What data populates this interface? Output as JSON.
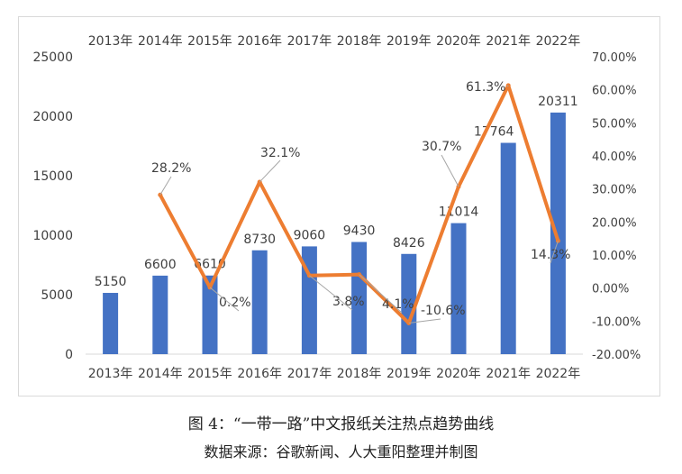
{
  "chart_data": {
    "type": "bar",
    "categories": [
      "2013年",
      "2014年",
      "2015年",
      "2016年",
      "2017年",
      "2018年",
      "2019年",
      "2020年",
      "2021年",
      "2022年"
    ],
    "series": [
      {
        "type": "bar",
        "color": "#4472C4",
        "axis": "left",
        "values": [
          5150,
          6600,
          6610,
          8730,
          9060,
          9430,
          8426,
          11014,
          17764,
          20311
        ],
        "labels": [
          "5150",
          "6600",
          "6610",
          "8730",
          "9060",
          "9430",
          "8426",
          "11014",
          "17764",
          "20311"
        ]
      },
      {
        "type": "line",
        "color": "#ED7D31",
        "axis": "right",
        "values": [
          null,
          28.2,
          0.2,
          32.1,
          3.8,
          4.1,
          -10.6,
          30.7,
          61.3,
          14.3
        ],
        "labels": [
          "",
          "28.2%",
          "0.2%",
          "32.1%",
          "3.8%",
          "4.1%",
          "-10.6%",
          "30.7%",
          "61.3%",
          "14.3%"
        ]
      }
    ],
    "y_left": {
      "range": [
        0,
        25000
      ],
      "ticks": [
        0,
        5000,
        10000,
        15000,
        20000,
        25000
      ],
      "tick_labels": [
        "0",
        "5000",
        "10000",
        "15000",
        "20000",
        "25000"
      ]
    },
    "y_right": {
      "range": [
        -20,
        70
      ],
      "ticks": [
        -20,
        -10,
        0,
        10,
        20,
        30,
        40,
        50,
        60,
        70
      ],
      "tick_labels": [
        "-20.00%",
        "-10.00%",
        "0.00%",
        "10.00%",
        "20.00%",
        "30.00%",
        "40.00%",
        "50.00%",
        "60.00%",
        "70.00%"
      ]
    },
    "category_labels_top": true,
    "grid": false,
    "legend": "none"
  },
  "caption": {
    "title": "图 4：“一带一路”中文报纸关注热点趋势曲线",
    "source": "数据来源：谷歌新闻、人大重阳整理并制图"
  }
}
